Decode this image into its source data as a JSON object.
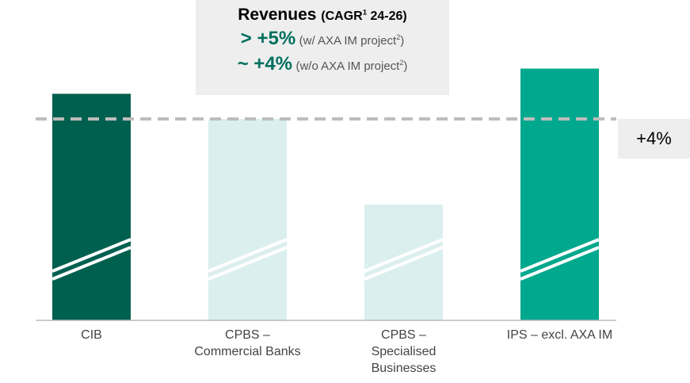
{
  "chart_data": {
    "type": "bar",
    "header": {
      "title": "Revenues",
      "note": "(CAGR",
      "note_sup": "1",
      "note_end": " 24-26)"
    },
    "annotations": [
      {
        "value": "> +5%",
        "note": "(w/ AXA IM project",
        "sup": "2",
        "end": ")"
      },
      {
        "value": "~ +4%",
        "note": "(w/o AXA IM project",
        "sup": "2",
        "end": ")"
      }
    ],
    "categories": [
      "CIB",
      "CPBS –\nCommercial Banks",
      "CPBS –\nSpecialised\nBusinesses",
      "IPS – excl. AXA IM"
    ],
    "values": [
      4.5,
      4.0,
      2.3,
      5.0
    ],
    "colors": [
      "#00604f",
      "#dcefef",
      "#dcefef",
      "#00a88e"
    ],
    "ylim": [
      0,
      6
    ],
    "reference_line": {
      "value": 4,
      "label": "+4%"
    }
  }
}
